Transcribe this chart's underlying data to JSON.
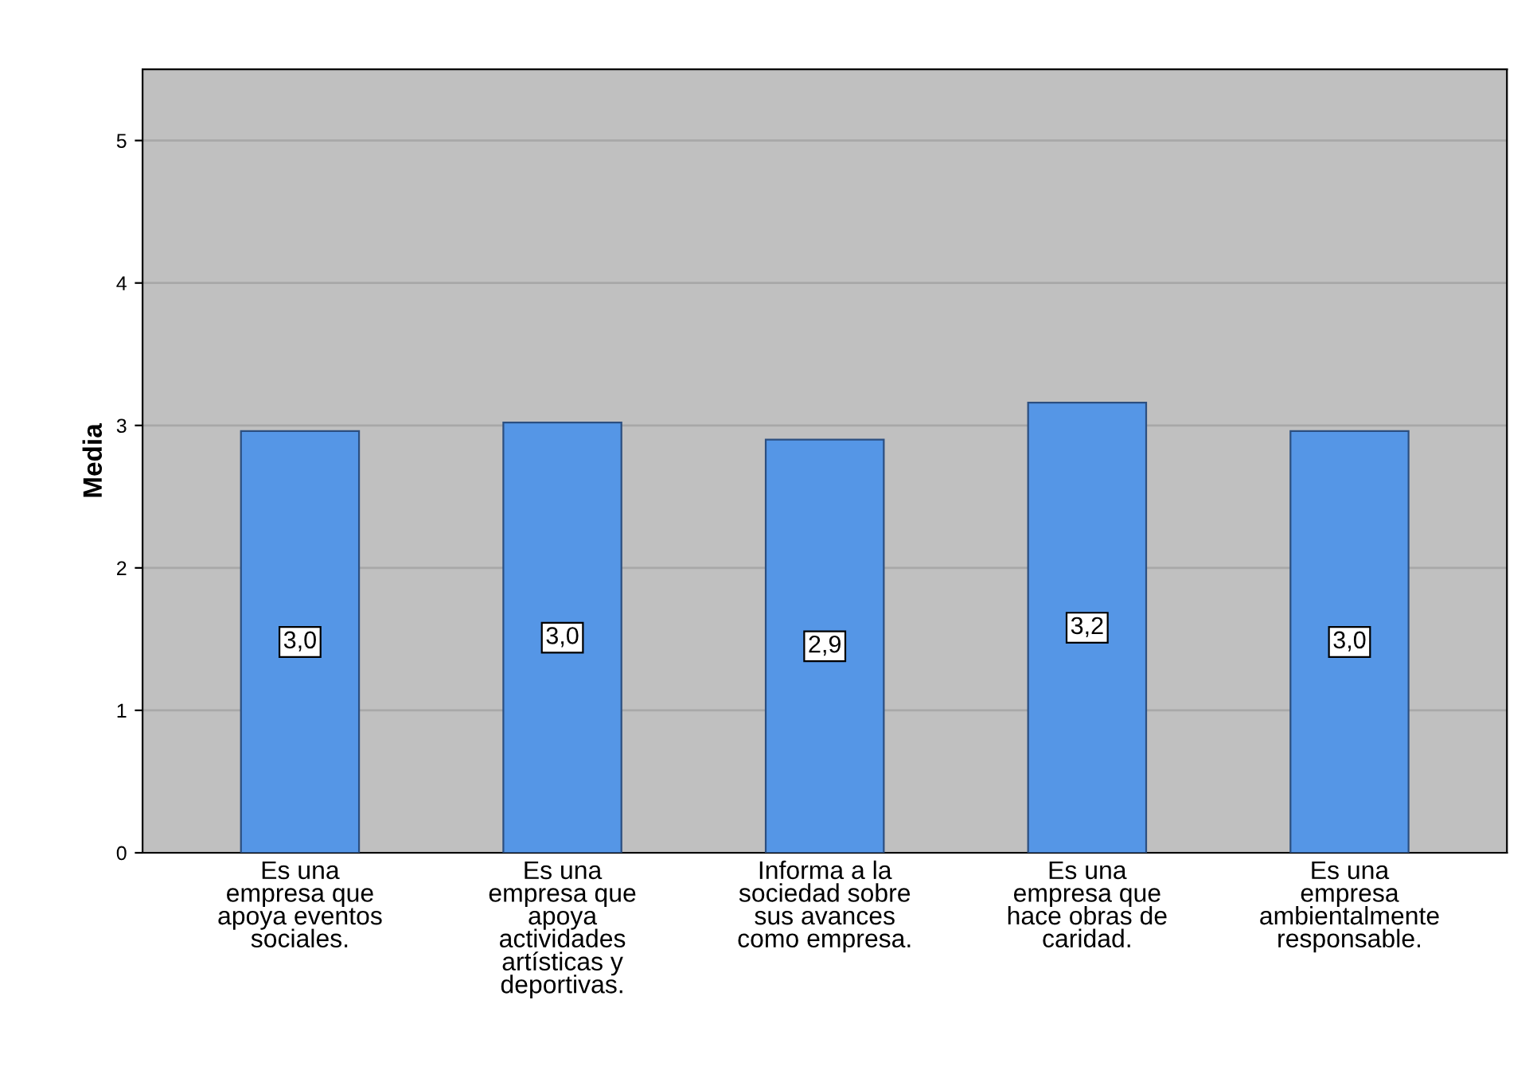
{
  "chart_data": {
    "type": "bar",
    "ylabel": "Media",
    "categories": [
      "Es una\nempresa que\napoya eventos\nsociales.",
      "Es una\nempresa que\napoya\nactividades\nartísticas y\ndeportivas.",
      "Informa a la\nsociedad sobre\nsus avances\ncomo empresa.",
      "Es una\nempresa que\nhace obras de\ncaridad.",
      "Es una\nempresa\nambientalmente\nresponsable."
    ],
    "values": [
      2.96,
      3.02,
      2.9,
      3.16,
      2.96
    ],
    "value_labels": [
      "3,0",
      "3,0",
      "2,9",
      "3,2",
      "3,0"
    ],
    "color": "#5596e6",
    "ylim": [
      0,
      5.5
    ],
    "yticks": [
      0,
      1,
      2,
      3,
      4,
      5
    ],
    "grid": "y"
  }
}
